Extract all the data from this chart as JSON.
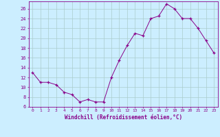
{
  "x": [
    0,
    1,
    2,
    3,
    4,
    5,
    6,
    7,
    8,
    9,
    10,
    11,
    12,
    13,
    14,
    15,
    16,
    17,
    18,
    19,
    20,
    21,
    22,
    23
  ],
  "y": [
    13,
    11,
    11,
    10.5,
    9,
    8.5,
    7,
    7.5,
    7,
    7,
    12,
    15.5,
    18.5,
    21,
    20.5,
    24,
    24.5,
    27,
    26,
    24,
    24,
    22,
    19.5,
    17
  ],
  "line_color": "#880088",
  "marker": "+",
  "bg_color": "#cceeff",
  "grid_color": "#aacccc",
  "xlabel": "Windchill (Refroidissement éolien,°C)",
  "xlim": [
    -0.5,
    23.5
  ],
  "ylim": [
    6,
    27.5
  ],
  "yticks": [
    6,
    8,
    10,
    12,
    14,
    16,
    18,
    20,
    22,
    24,
    26
  ],
  "xticks": [
    0,
    1,
    2,
    3,
    4,
    5,
    6,
    7,
    8,
    9,
    10,
    11,
    12,
    13,
    14,
    15,
    16,
    17,
    18,
    19,
    20,
    21,
    22,
    23
  ],
  "tick_color": "#880088",
  "label_color": "#880088"
}
